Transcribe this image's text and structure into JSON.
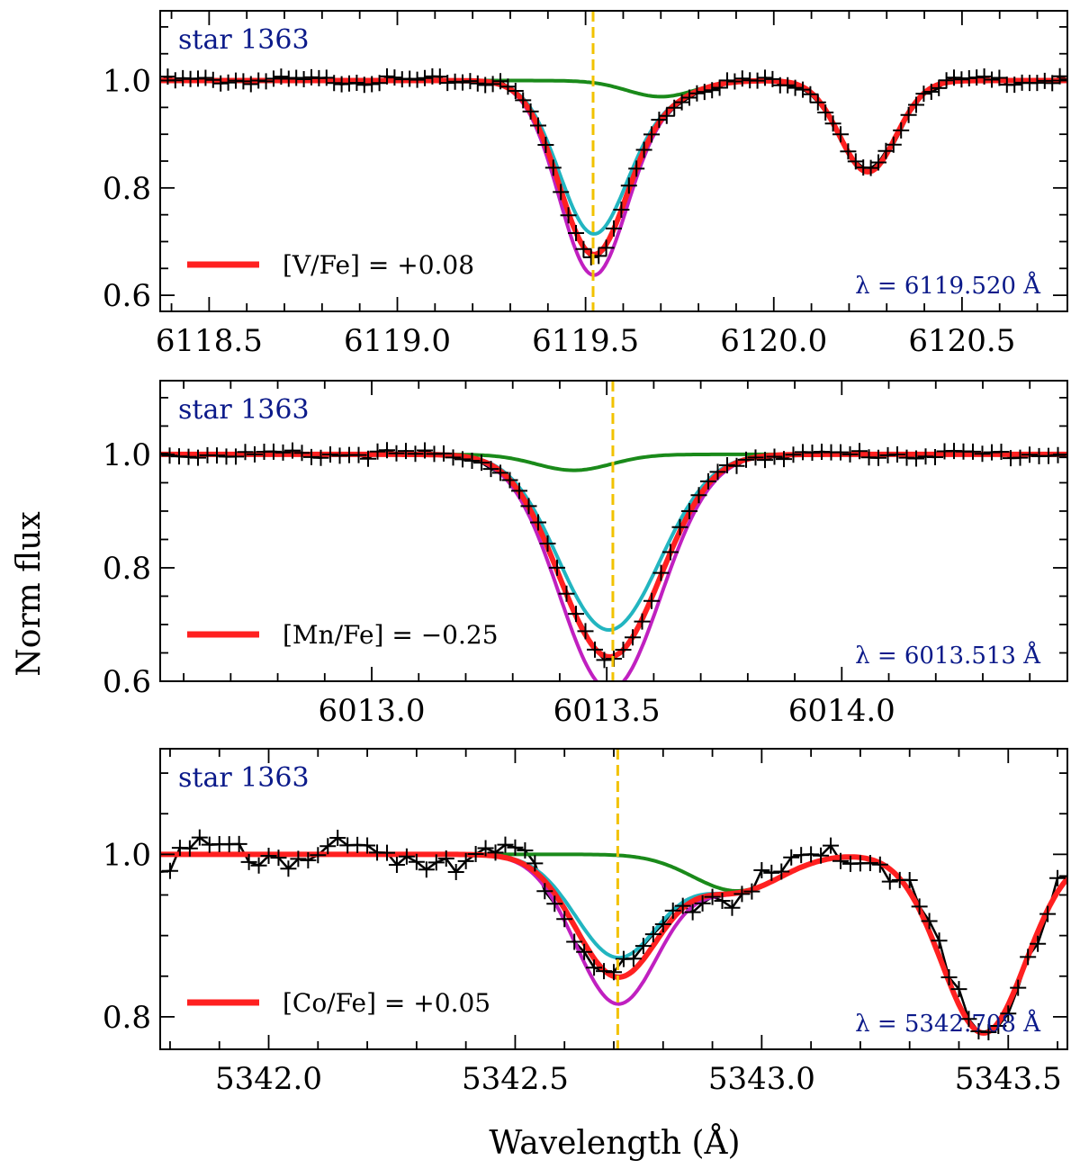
{
  "axes": {
    "ylabel": "Norm flux",
    "xlabel": "Wavelength (Å)"
  },
  "colors": {
    "observed": "#000000",
    "best_fit": "#ff2020",
    "upper": "#22b5c0",
    "lower": "#c020c0",
    "no_element": "#1a8a1a",
    "line_marker": "#f2c200",
    "label_text": "#0b1a8a"
  },
  "chart_data": [
    {
      "type": "line",
      "star_label": "star 1363",
      "legend": "[V/Fe] = +0.08",
      "line_label": "λ = 6119.520 Å",
      "line_center": 6119.52,
      "xlim": [
        6118.37,
        6120.78
      ],
      "ylim": [
        0.57,
        1.13
      ],
      "xticks": [
        6118.5,
        6119.0,
        6119.5,
        6120.0,
        6120.5
      ],
      "xtick_labels": [
        "6118.5",
        "6119.0",
        "6119.5",
        "6120.0",
        "6120.5"
      ],
      "yticks": [
        0.6,
        0.8,
        1.0
      ],
      "ytick_labels": [
        "0.6",
        "0.8",
        "1.0"
      ],
      "lines": [
        {
          "center": 6119.52,
          "width": 0.09,
          "depth": 0.32
        },
        {
          "center": 6120.25,
          "width": 0.075,
          "depth": 0.17
        }
      ],
      "companion": {
        "center": 6119.7,
        "width": 0.09,
        "depth": 0.03
      },
      "series": [
        {
          "role": "observed",
          "strength": 1.0
        },
        {
          "role": "best_fit",
          "strength": 1.0
        },
        {
          "role": "upper",
          "strength": 0.88
        },
        {
          "role": "lower",
          "strength": 1.12
        },
        {
          "role": "no_element",
          "strength": 0.0
        }
      ]
    },
    {
      "type": "line",
      "star_label": "star 1363",
      "legend": "[Mn/Fe] = −0.25",
      "line_label": "λ = 6013.513 Å",
      "line_center": 6013.513,
      "xlim": [
        6012.55,
        6014.48
      ],
      "ylim": [
        0.6,
        1.13
      ],
      "xticks": [
        6013.0,
        6013.5,
        6014.0
      ],
      "xtick_labels": [
        "6013.0",
        "6013.5",
        "6014.0"
      ],
      "yticks": [
        0.6,
        0.8,
        1.0
      ],
      "ytick_labels": [
        "0.6",
        "0.8",
        "1.0"
      ],
      "lines": [
        {
          "center": 6013.513,
          "width": 0.105,
          "depth": 0.34
        }
      ],
      "companion": {
        "center": 6013.43,
        "width": 0.08,
        "depth": 0.028
      },
      "series": [
        {
          "role": "observed",
          "strength": 1.0
        },
        {
          "role": "best_fit",
          "strength": 1.0
        },
        {
          "role": "upper",
          "strength": 0.86
        },
        {
          "role": "lower",
          "strength": 1.17
        },
        {
          "role": "no_element",
          "strength": 0.0
        }
      ]
    },
    {
      "type": "line",
      "star_label": "star 1363",
      "legend": "[Co/Fe] = +0.05",
      "line_label": "λ = 5342.708 Å",
      "line_center": 5342.708,
      "xlim": [
        5341.78,
        5343.62
      ],
      "ylim": [
        0.76,
        1.13
      ],
      "xticks": [
        5342.0,
        5342.5,
        5343.0,
        5343.5
      ],
      "xtick_labels": [
        "5342.0",
        "5342.5",
        "5343.0",
        "5343.5"
      ],
      "yticks": [
        0.8,
        1.0
      ],
      "yticks_minor_only": true,
      "ytick_labels": [
        "0.8",
        "1.0"
      ],
      "lines": [
        {
          "center": 5342.708,
          "width": 0.085,
          "depth": 0.15
        },
        {
          "center": 5343.45,
          "width": 0.085,
          "depth": 0.22
        }
      ],
      "companion": {
        "center": 5342.95,
        "width": 0.09,
        "depth": 0.045
      },
      "series": [
        {
          "role": "observed",
          "strength": 1.0
        },
        {
          "role": "best_fit",
          "strength": 1.0
        },
        {
          "role": "upper",
          "strength": 0.84
        },
        {
          "role": "lower",
          "strength": 1.22
        },
        {
          "role": "no_element",
          "strength": 0.0
        }
      ]
    }
  ]
}
